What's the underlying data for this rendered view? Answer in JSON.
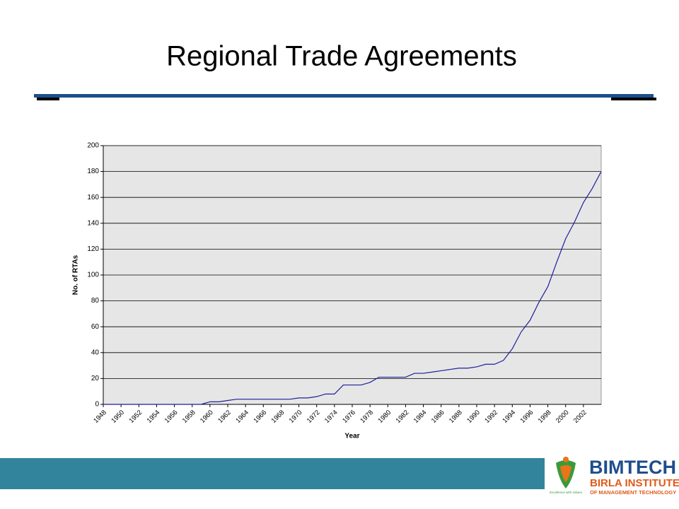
{
  "slide": {
    "title": "Regional Trade Agreements",
    "logo": {
      "name": "BIMTECH",
      "line1": "BIRLA INSTITUTE",
      "line2": "OF MANAGEMENT TECHNOLOGY",
      "motto": "Excellence with Values"
    }
  },
  "chart_data": {
    "type": "line",
    "x_label": "Year",
    "y_label": "No. of RTAs",
    "x": [
      1948,
      1949,
      1950,
      1951,
      1952,
      1953,
      1954,
      1955,
      1956,
      1957,
      1958,
      1959,
      1960,
      1961,
      1962,
      1963,
      1964,
      1965,
      1966,
      1967,
      1968,
      1969,
      1970,
      1971,
      1972,
      1973,
      1974,
      1975,
      1976,
      1977,
      1978,
      1979,
      1980,
      1981,
      1982,
      1983,
      1984,
      1985,
      1986,
      1987,
      1988,
      1989,
      1990,
      1991,
      1992,
      1993,
      1994,
      1995,
      1996,
      1997,
      1998,
      1999,
      2000,
      2001,
      2002,
      2003,
      2004
    ],
    "values": [
      0,
      0,
      0,
      0,
      0,
      0,
      0,
      0,
      0,
      0,
      0,
      0,
      2,
      2,
      3,
      4,
      4,
      4,
      4,
      4,
      4,
      4,
      5,
      5,
      6,
      8,
      8,
      15,
      15,
      15,
      17,
      21,
      21,
      21,
      21,
      24,
      24,
      25,
      26,
      27,
      28,
      28,
      29,
      31,
      31,
      34,
      43,
      56,
      65,
      79,
      91,
      110,
      128,
      141,
      156,
      167,
      180
    ],
    "color": "#1f1f9c",
    "xlim": [
      1948,
      2004
    ],
    "xticks": [
      1948,
      1950,
      1952,
      1954,
      1956,
      1958,
      1960,
      1962,
      1964,
      1966,
      1968,
      1970,
      1972,
      1974,
      1976,
      1978,
      1980,
      1982,
      1984,
      1986,
      1988,
      1990,
      1992,
      1994,
      1996,
      1998,
      2000,
      2002
    ],
    "ylim": [
      0,
      200
    ],
    "yticks": [
      0,
      20,
      40,
      60,
      80,
      100,
      120,
      140,
      160,
      180,
      200
    ],
    "grid": true
  }
}
